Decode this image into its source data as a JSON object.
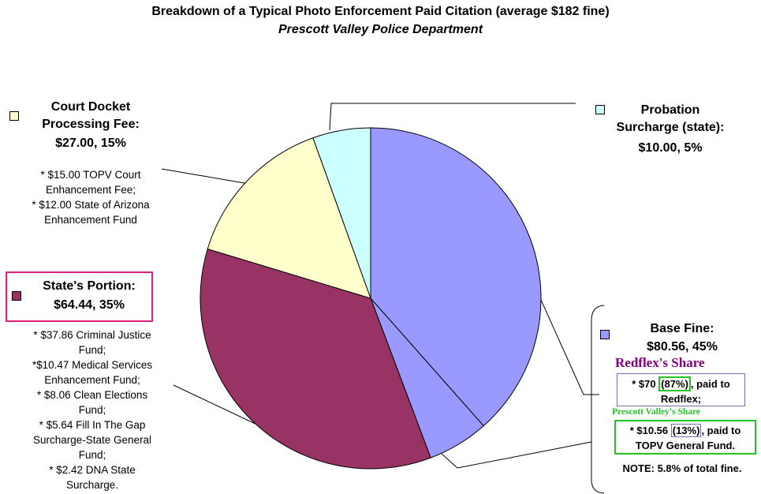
{
  "chart_data": {
    "type": "pie",
    "title": "Breakdown of a Typical Photo Enforcement Paid Citation (average $182 fine)",
    "subtitle": "Prescott Valley Police Department",
    "slices": [
      {
        "label": "Redflex's Share",
        "value": 70.0,
        "color": "#9999ff"
      },
      {
        "label": "TOPV General Fund",
        "value": 10.56,
        "color": "#9999ff"
      },
      {
        "label": "State's Portion",
        "value": 64.44,
        "color": "#993366"
      },
      {
        "label": "Court Docket Processing Fee",
        "value": 27.0,
        "color": "#ffffcc"
      },
      {
        "label": "Probation Surcharge (state)",
        "value": 10.0,
        "color": "#ccffff"
      }
    ]
  },
  "labels": {
    "court": {
      "title": "Court Docket\nProcessing Fee:",
      "amount": "$27.00, 15%",
      "details": "* $15.00 TOPV Court\nEnhancement Fee;\n* $12.00 State of Arizona\nEnhancement Fund"
    },
    "probation": {
      "title": "Probation\nSurcharge (state):",
      "amount": "$10.00, 5%"
    },
    "state": {
      "title": "State's Portion:",
      "amount": "$64.44, 35%",
      "details": "* $37.86 Criminal Justice\nFund;\n*$10.47 Medical Services\nEnhancement Fund;\n* $8.06 Clean Elections\nFund;\n* $5.64 Fill In The Gap\nSurcharge-State General\nFund;\n* $2.42 DNA State\nSurcharge."
    },
    "base": {
      "title": "Base Fine:",
      "amount": "$80.56, 45%",
      "note": "NOTE: 5.8% of total fine."
    },
    "redflex": {
      "heading": "Redflex's Share",
      "pre": "* $70 ",
      "pct": "(87%)",
      "post": ", paid to",
      "line2": "Redflex;"
    },
    "topv": {
      "heading": "Prescott Valley's Share",
      "pre": "* $10.56 ",
      "pct": "(13%)",
      "post": ", paid to",
      "line2": "TOPV General Fund."
    }
  },
  "colors": {
    "blue": "#9999ff",
    "maroon": "#993366",
    "cream": "#ffffcc",
    "cyan": "#ccffff",
    "purple": "#800080",
    "green": "#22c522",
    "pink": "#e0207a"
  }
}
